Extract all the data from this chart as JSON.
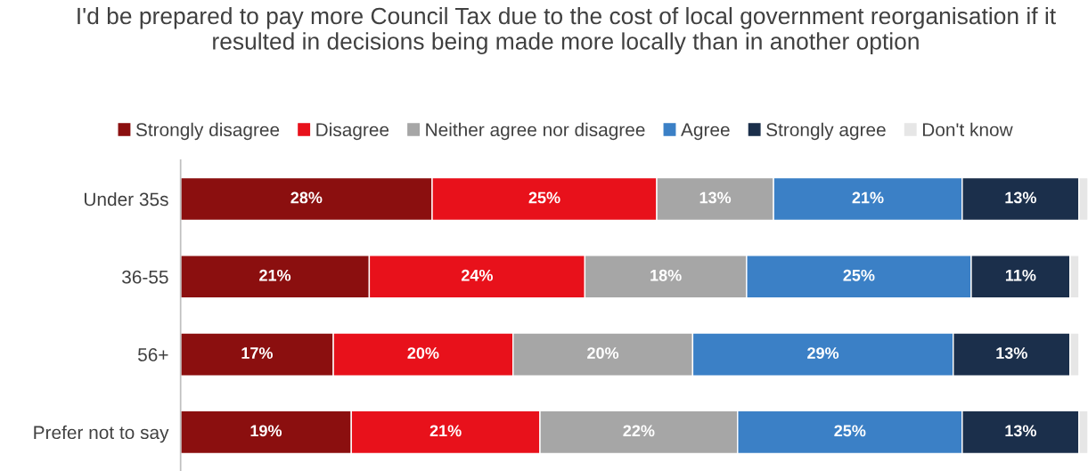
{
  "chart_data": {
    "type": "bar",
    "orientation": "horizontal",
    "stacked": true,
    "title": "I'd be prepared to pay more Council Tax due to the cost of local government reorganisation if it resulted in decisions being made more locally than in another option",
    "categories": [
      "Under 35s",
      "36-55",
      "56+",
      "Prefer not to say"
    ],
    "series": [
      {
        "name": "Strongly disagree",
        "color": "#8b0f0f",
        "values": [
          28,
          21,
          17,
          19
        ],
        "value_labels": [
          "28%",
          "21%",
          "17%",
          "19%"
        ]
      },
      {
        "name": "Disagree",
        "color": "#e8111b",
        "values": [
          25,
          24,
          20,
          21
        ],
        "value_labels": [
          "25%",
          "24%",
          "20%",
          "21%"
        ]
      },
      {
        "name": "Neither agree nor disagree",
        "color": "#a6a6a6",
        "values": [
          13,
          18,
          20,
          22
        ],
        "value_labels": [
          "13%",
          "18%",
          "20%",
          "22%"
        ]
      },
      {
        "name": "Agree",
        "color": "#3b80c6",
        "values": [
          21,
          25,
          29,
          25
        ],
        "value_labels": [
          "21%",
          "25%",
          "29%",
          "25%"
        ]
      },
      {
        "name": "Strongly agree",
        "color": "#1b2f4b",
        "values": [
          13,
          11,
          13,
          13
        ],
        "value_labels": [
          "13%",
          "11%",
          "13%",
          "13%"
        ]
      },
      {
        "name": "Don't know",
        "color": "#e6e6e6",
        "values": [
          1,
          1,
          1,
          1
        ],
        "value_labels": [
          null,
          null,
          null,
          null
        ]
      }
    ],
    "xlim": [
      0,
      101
    ],
    "tick_labels": "y",
    "grid": false,
    "legend": "top"
  }
}
